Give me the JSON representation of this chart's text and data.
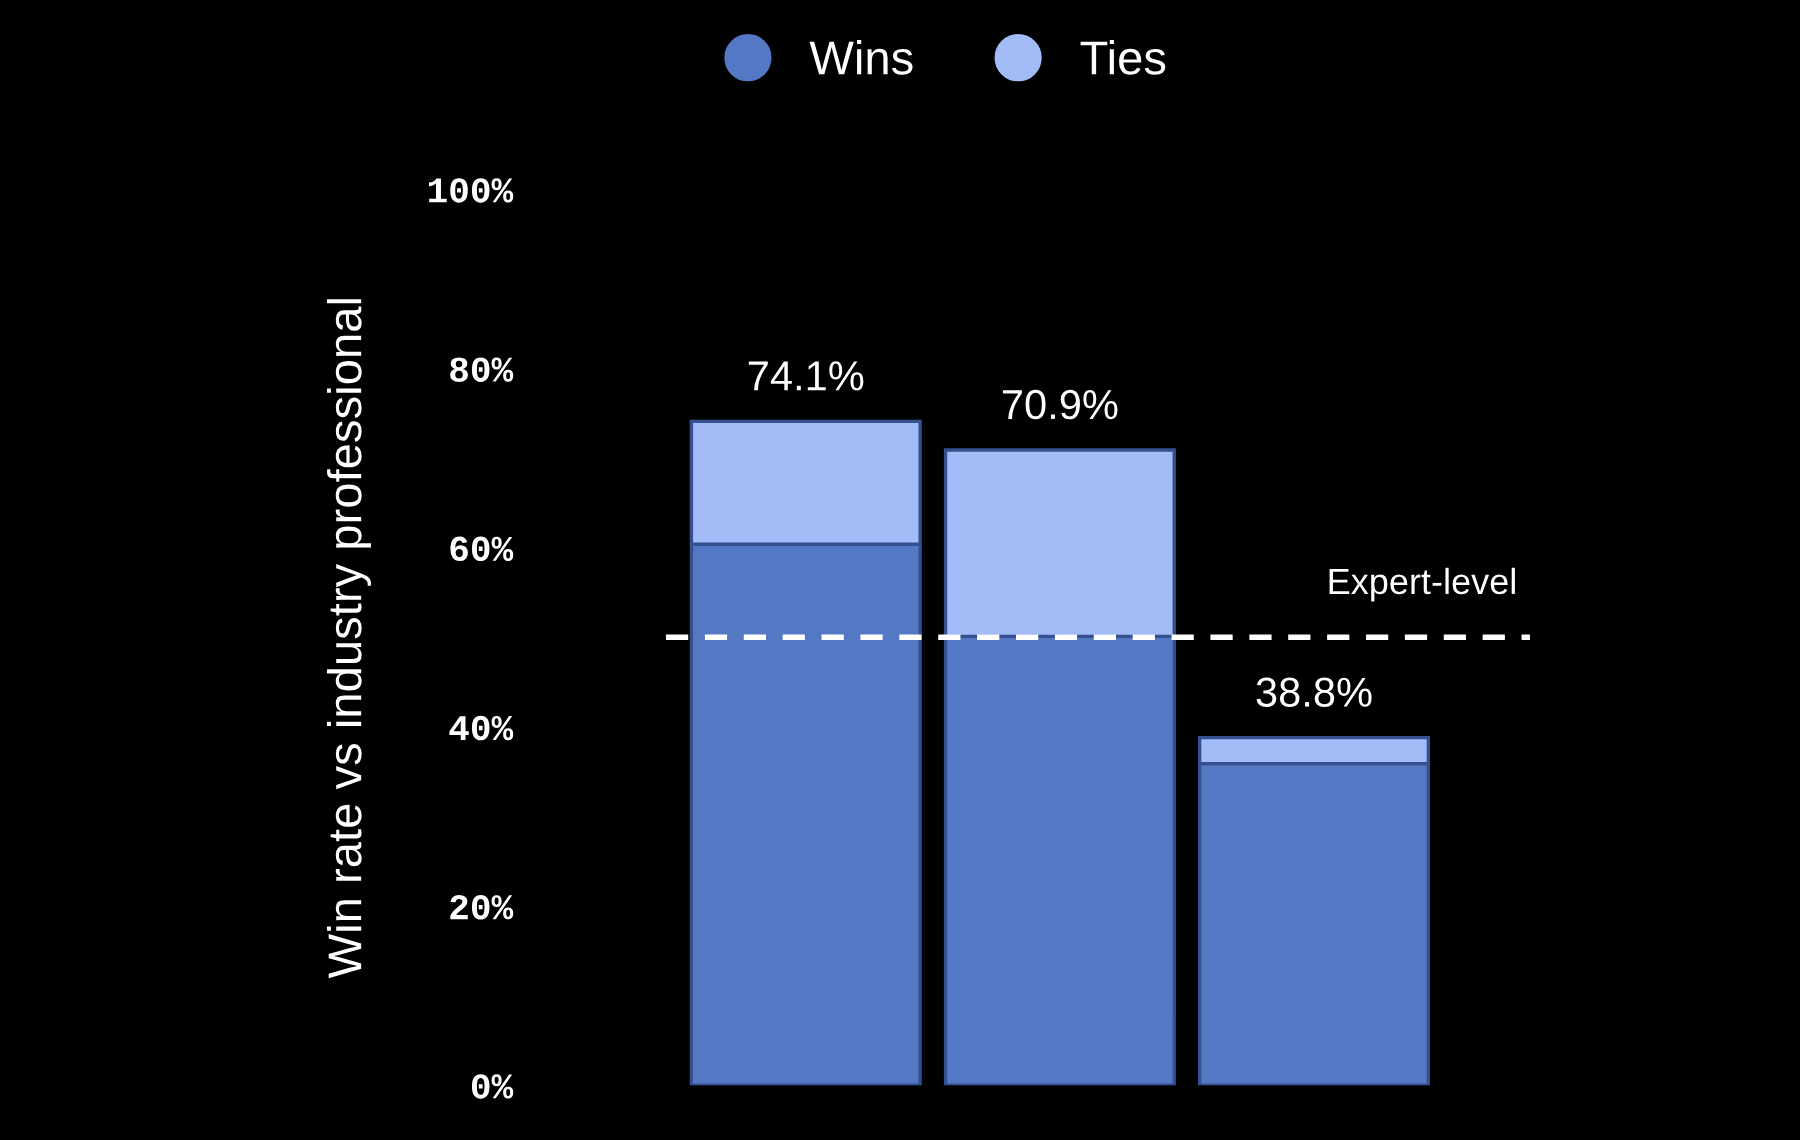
{
  "chart_data": {
    "type": "bar",
    "stacked": true,
    "ylabel": "Win rate vs industry professional",
    "categories": [
      null,
      null,
      null
    ],
    "series": [
      {
        "name": "Wins",
        "color": "#5578c4",
        "values": [
          60.4,
          50.1,
          35.9
        ]
      },
      {
        "name": "Ties",
        "color": "#a3bbf7",
        "values": [
          13.7,
          20.8,
          2.9
        ]
      }
    ],
    "totals": [
      "74.1%",
      "70.9%",
      "38.8%"
    ],
    "ylim": [
      0,
      100
    ],
    "yticks": [
      {
        "value": 0,
        "label": "0%"
      },
      {
        "value": 20,
        "label": "20%"
      },
      {
        "value": 40,
        "label": "40%"
      },
      {
        "value": 60,
        "label": "60%"
      },
      {
        "value": 80,
        "label": "80%"
      },
      {
        "value": 100,
        "label": "100%"
      }
    ],
    "ref_lines": [
      {
        "axis": "y",
        "value": 50,
        "label": "Expert-level",
        "color": "#ffffff",
        "line_style": "dashed"
      }
    ],
    "legend": "top",
    "grid": false
  }
}
